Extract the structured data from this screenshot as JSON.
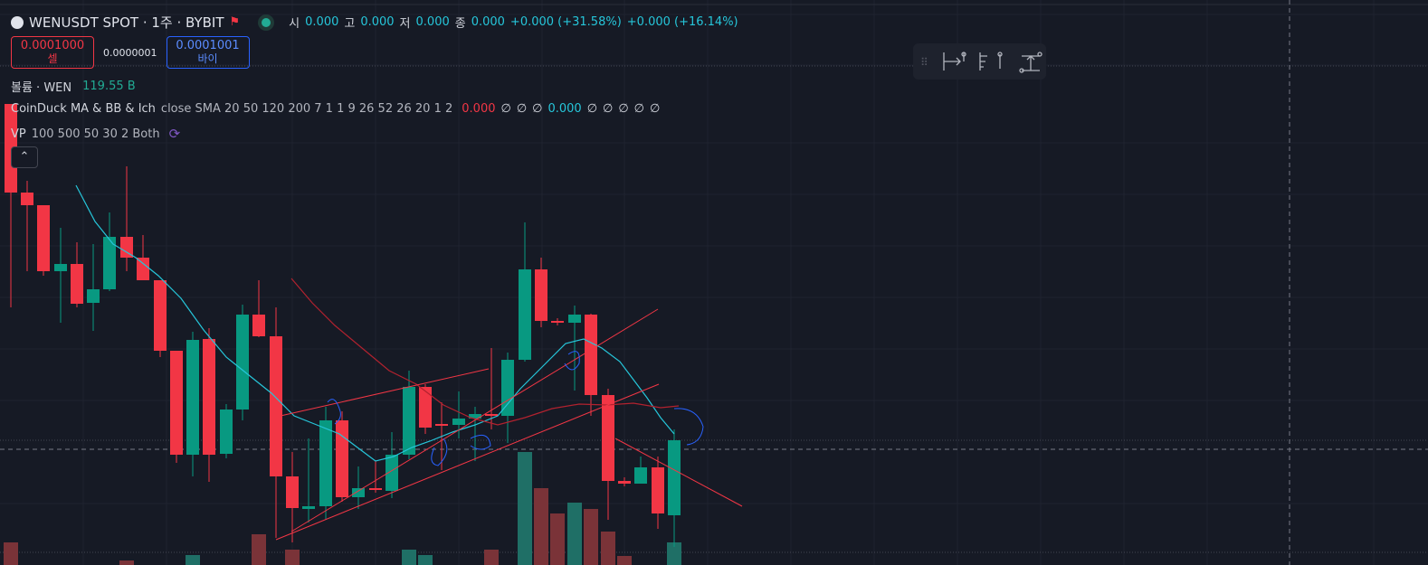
{
  "header": {
    "symbol": "WENUSDT SPOT · 1주 · BYBIT",
    "ohlc": [
      {
        "label": "시",
        "value": "0.000"
      },
      {
        "label": "고",
        "value": "0.000"
      },
      {
        "label": "저",
        "value": "0.000"
      },
      {
        "label": "종",
        "value": "0.000"
      }
    ],
    "change": "+0.000 (+31.58%)",
    "change_alt": "+0.000 (+16.14%)"
  },
  "trade": {
    "sell_price": "0.0001000",
    "sell_label": "셀",
    "spread": "0.0000001",
    "buy_price": "0.0001001",
    "buy_label": "바이"
  },
  "volume": {
    "label": "볼륨 · WEN",
    "value": "119.55 B"
  },
  "indicator": {
    "name": "CoinDuck MA & BB & Ich",
    "params": "close SMA 20 50 120 200 7 1 1 9 26 52 26 20 1 2",
    "values": [
      "0.000",
      "∅",
      "∅",
      "∅",
      "0.000",
      "∅",
      "∅",
      "∅",
      "∅",
      "∅"
    ]
  },
  "vp": {
    "name": "VP",
    "params": "100 500 50 30 2 Both"
  }
}
